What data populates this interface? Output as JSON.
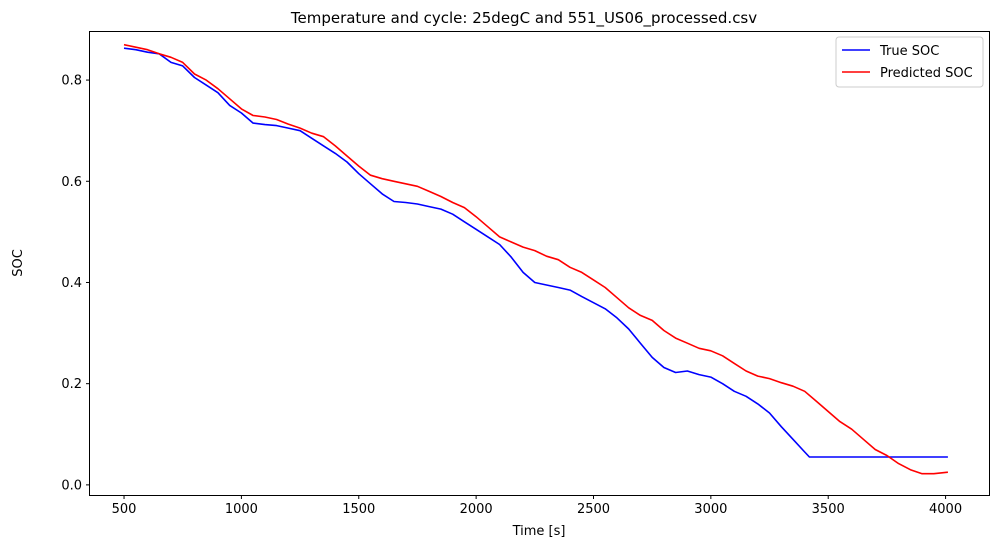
{
  "chart_data": {
    "type": "line",
    "title": "Temperature and cycle: 25degC and 551_US06_processed.csv",
    "xlabel": "Time [s]",
    "ylabel": "SOC",
    "xlim": [
      355,
      4185
    ],
    "ylim": [
      -0.02,
      0.895
    ],
    "xticks": [
      500,
      1000,
      1500,
      2000,
      2500,
      3000,
      3500,
      4000
    ],
    "yticks": [
      0.0,
      0.2,
      0.4,
      0.6,
      0.8
    ],
    "grid": false,
    "legend_position": "top-right",
    "series": [
      {
        "name": "True SOC",
        "color": "#0000ff",
        "x": [
          500,
          550,
          600,
          650,
          700,
          750,
          800,
          850,
          900,
          950,
          1000,
          1050,
          1100,
          1150,
          1200,
          1250,
          1300,
          1350,
          1400,
          1450,
          1500,
          1550,
          1600,
          1650,
          1700,
          1750,
          1800,
          1850,
          1900,
          1950,
          2000,
          2050,
          2100,
          2150,
          2200,
          2250,
          2300,
          2350,
          2400,
          2450,
          2500,
          2550,
          2600,
          2650,
          2700,
          2750,
          2800,
          2850,
          2900,
          2950,
          3000,
          3050,
          3100,
          3150,
          3200,
          3250,
          3300,
          3350,
          3400,
          3420,
          3500,
          3600,
          3700,
          3800,
          3900,
          4010
        ],
        "y": [
          0.863,
          0.86,
          0.855,
          0.852,
          0.835,
          0.828,
          0.805,
          0.79,
          0.775,
          0.75,
          0.735,
          0.715,
          0.712,
          0.71,
          0.705,
          0.7,
          0.685,
          0.67,
          0.655,
          0.638,
          0.615,
          0.595,
          0.575,
          0.56,
          0.558,
          0.555,
          0.55,
          0.545,
          0.535,
          0.52,
          0.505,
          0.49,
          0.475,
          0.45,
          0.42,
          0.4,
          0.395,
          0.39,
          0.385,
          0.372,
          0.36,
          0.348,
          0.33,
          0.308,
          0.28,
          0.252,
          0.232,
          0.222,
          0.225,
          0.218,
          0.213,
          0.2,
          0.185,
          0.175,
          0.16,
          0.142,
          0.115,
          0.09,
          0.065,
          0.055,
          0.055,
          0.055,
          0.055,
          0.055,
          0.055,
          0.055
        ]
      },
      {
        "name": "Predicted SOC",
        "color": "#ff0000",
        "x": [
          500,
          550,
          600,
          650,
          700,
          750,
          800,
          850,
          900,
          950,
          1000,
          1050,
          1100,
          1150,
          1200,
          1250,
          1300,
          1350,
          1400,
          1450,
          1500,
          1550,
          1600,
          1650,
          1700,
          1750,
          1800,
          1850,
          1900,
          1950,
          2000,
          2050,
          2100,
          2150,
          2200,
          2250,
          2300,
          2350,
          2400,
          2450,
          2500,
          2550,
          2600,
          2650,
          2700,
          2750,
          2800,
          2850,
          2900,
          2950,
          3000,
          3050,
          3100,
          3150,
          3200,
          3250,
          3300,
          3350,
          3400,
          3450,
          3500,
          3550,
          3600,
          3650,
          3700,
          3750,
          3800,
          3850,
          3900,
          3950,
          4010
        ],
        "y": [
          0.87,
          0.865,
          0.86,
          0.852,
          0.845,
          0.835,
          0.812,
          0.8,
          0.783,
          0.763,
          0.743,
          0.73,
          0.727,
          0.722,
          0.713,
          0.705,
          0.695,
          0.688,
          0.67,
          0.65,
          0.63,
          0.612,
          0.605,
          0.6,
          0.595,
          0.59,
          0.58,
          0.57,
          0.558,
          0.548,
          0.53,
          0.51,
          0.49,
          0.48,
          0.47,
          0.463,
          0.452,
          0.445,
          0.43,
          0.42,
          0.405,
          0.39,
          0.37,
          0.35,
          0.335,
          0.325,
          0.305,
          0.29,
          0.28,
          0.27,
          0.265,
          0.255,
          0.24,
          0.225,
          0.215,
          0.21,
          0.202,
          0.195,
          0.185,
          0.165,
          0.145,
          0.125,
          0.11,
          0.09,
          0.07,
          0.058,
          0.042,
          0.03,
          0.022,
          0.022,
          0.025
        ]
      }
    ]
  }
}
